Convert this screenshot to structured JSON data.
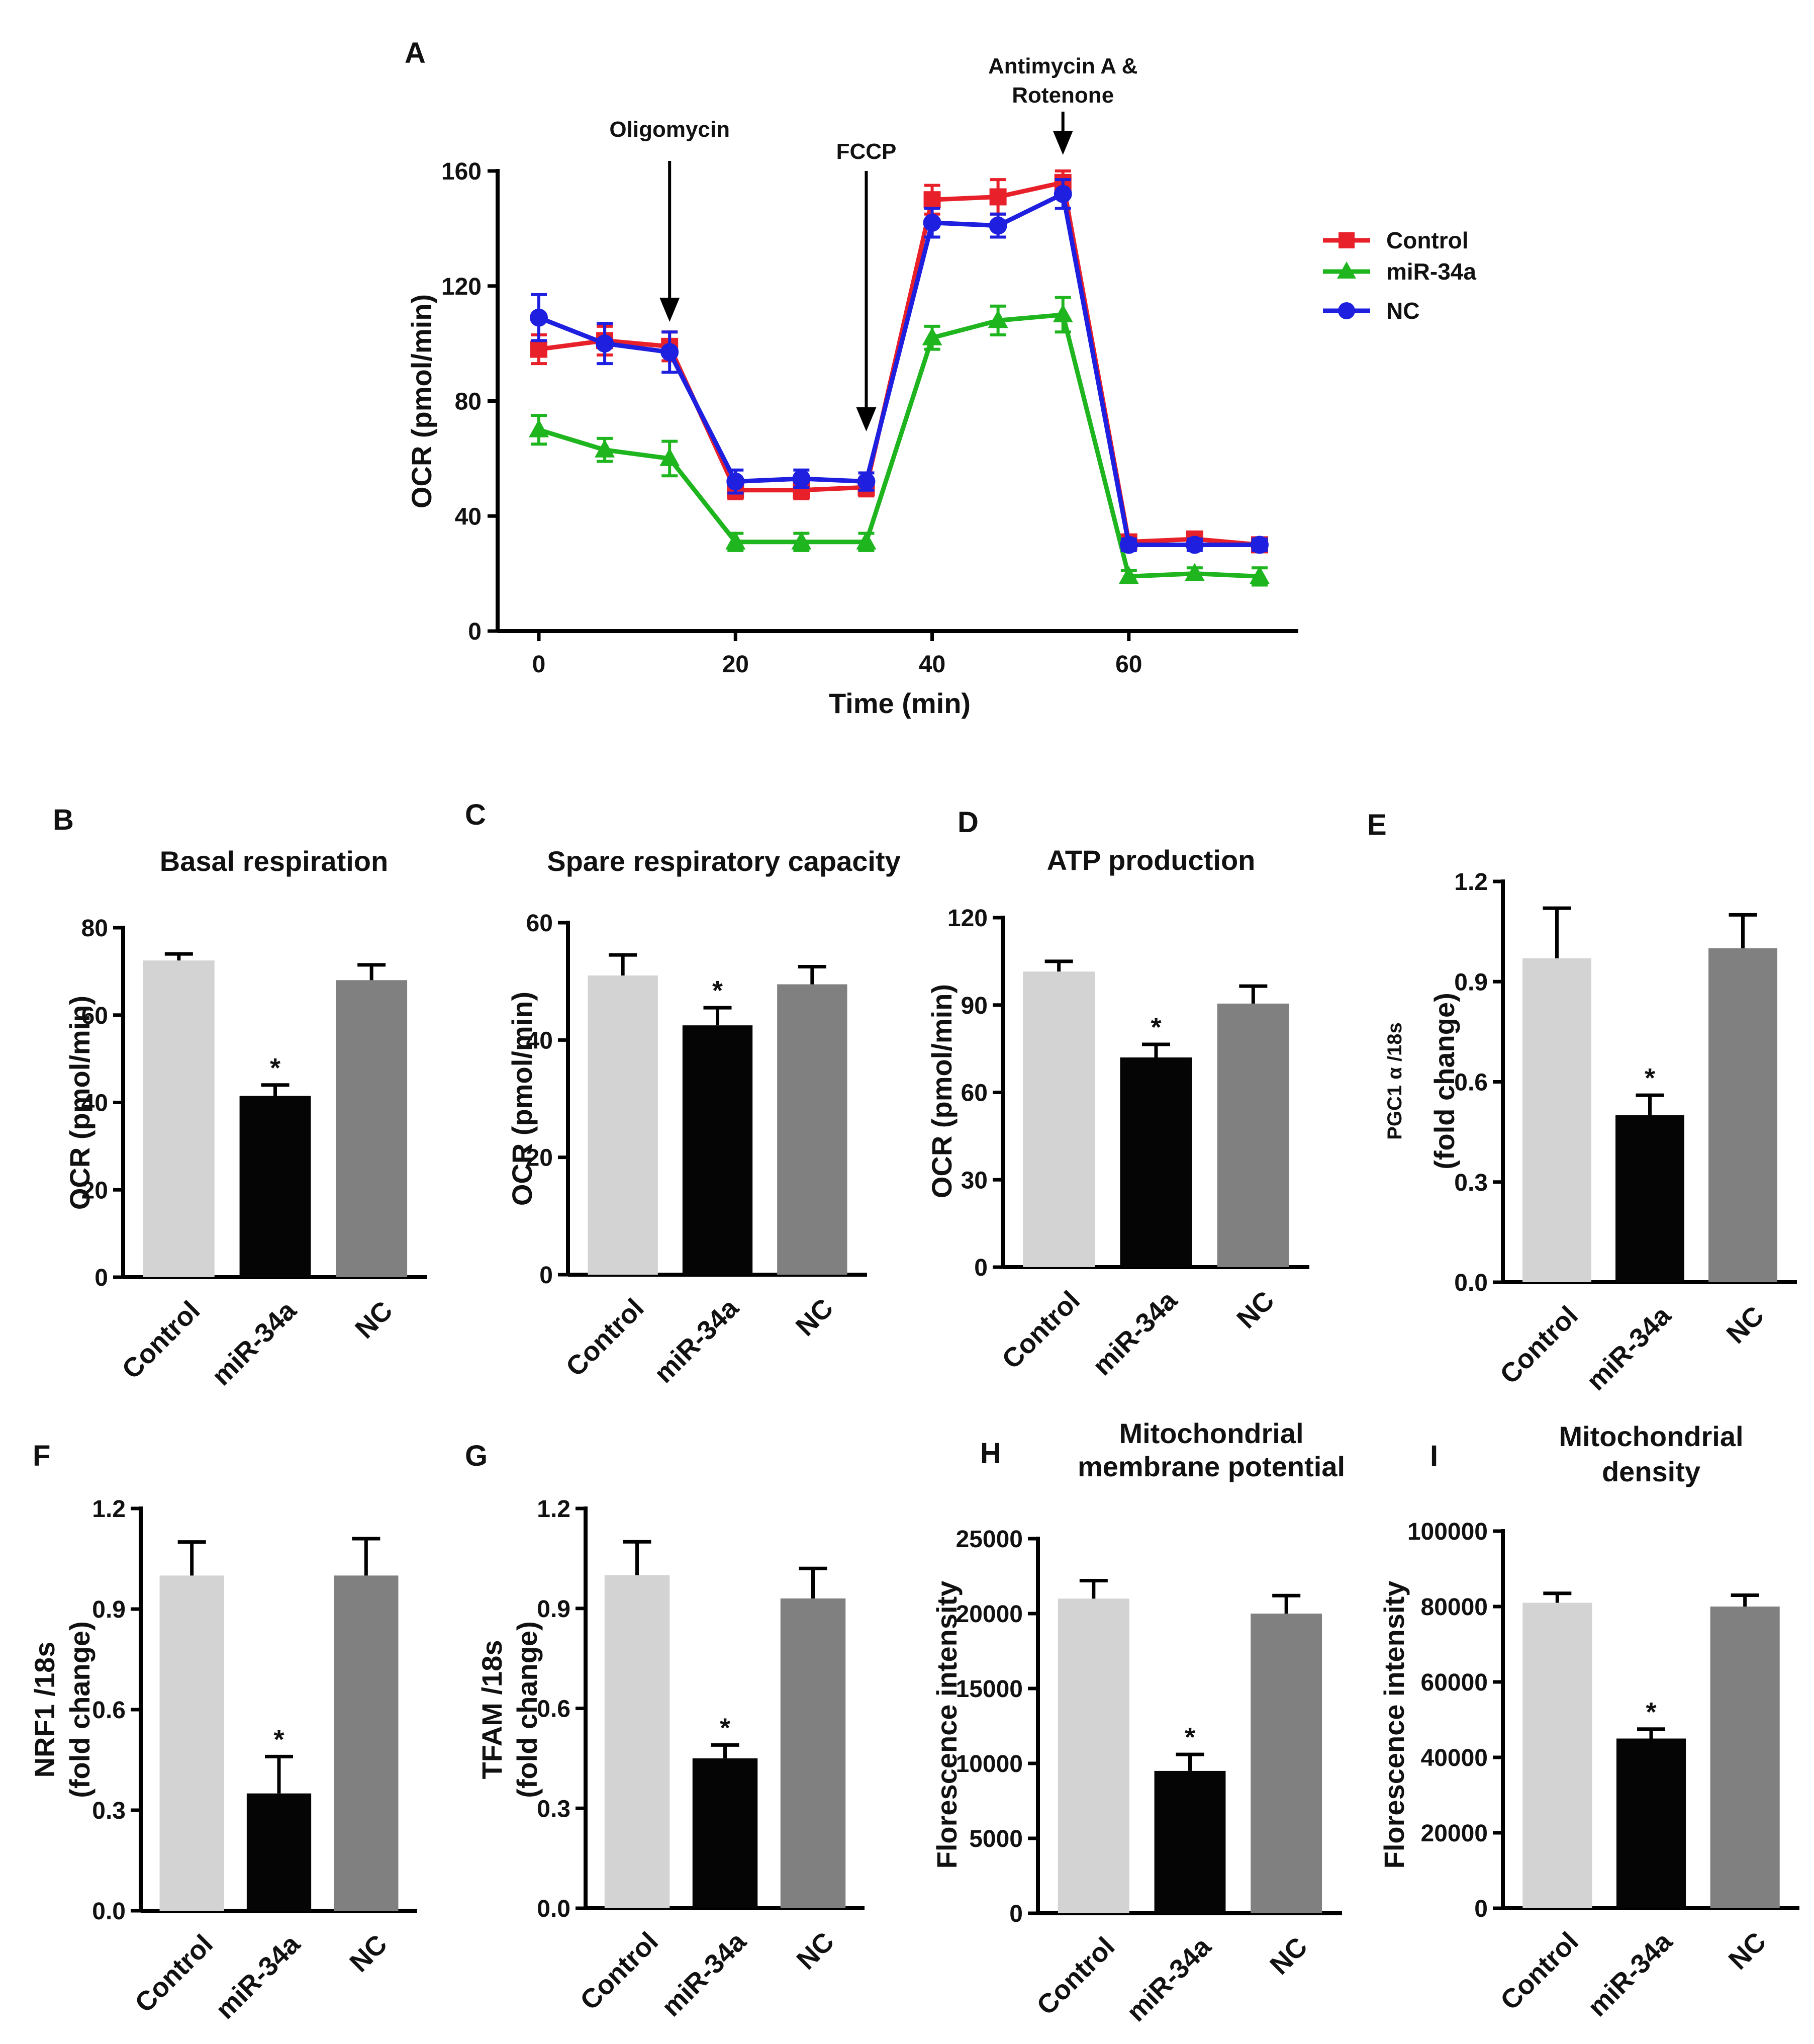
{
  "chart_data": [
    {
      "id": "A",
      "panel_label": "A",
      "type": "line",
      "title": "",
      "xlabel": "Time (min)",
      "ylabel": "OCR (pmol/min)",
      "xlim": [
        0,
        75
      ],
      "ylim": [
        0,
        160
      ],
      "xticks": [
        0,
        20,
        40,
        60
      ],
      "yticks": [
        0,
        40,
        80,
        120,
        160
      ],
      "x": [
        0,
        6.7,
        13.3,
        20,
        26.7,
        33.3,
        40,
        46.7,
        53.3,
        60,
        66.7,
        73.3
      ],
      "series": [
        {
          "name": "Control",
          "color": "#e8202a",
          "marker": "square",
          "values": [
            98,
            101,
            99,
            49,
            49,
            50,
            150,
            151,
            156,
            31,
            32,
            30
          ],
          "errors": [
            5,
            5,
            5,
            3,
            3,
            3,
            5,
            6,
            4,
            2,
            2,
            2
          ]
        },
        {
          "name": "miR-34a",
          "color": "#1fb51f",
          "marker": "triangle",
          "values": [
            70,
            63,
            60,
            31,
            31,
            31,
            102,
            108,
            110,
            19,
            20,
            19
          ],
          "errors": [
            5,
            4,
            6,
            3,
            3,
            3,
            4,
            5,
            6,
            2,
            2,
            3
          ]
        },
        {
          "name": "NC",
          "color": "#1f1fe0",
          "marker": "circle",
          "values": [
            109,
            100,
            97,
            52,
            53,
            52,
            142,
            141,
            152,
            30,
            30,
            30
          ],
          "errors": [
            8,
            7,
            7,
            4,
            3,
            3,
            5,
            4,
            5,
            2,
            2,
            2
          ]
        }
      ],
      "legend": [
        "Control",
        "miR-34a",
        "NC"
      ],
      "legend_position": "right",
      "annotations": [
        {
          "label": "Oligomycin",
          "x": 13.3
        },
        {
          "label": "FCCP",
          "x": 33.3
        },
        {
          "label": "Antimycin A &",
          "label2": "Rotenone",
          "x": 53.3
        }
      ]
    },
    {
      "id": "B",
      "panel_label": "B",
      "type": "bar",
      "title": "Basal respiration",
      "title2": "",
      "ylabel": "OCR (pmol/min)",
      "ylabel2": "",
      "categories": [
        "Control",
        "miR-34a",
        "NC"
      ],
      "values": [
        72.5,
        41.5,
        68
      ],
      "errors": [
        1.5,
        2.5,
        3.5
      ],
      "significance": [
        "",
        "*",
        ""
      ],
      "ylim": [
        0,
        80
      ],
      "yticks": [
        "0",
        "20",
        "40",
        "60",
        "80"
      ],
      "colors": [
        "#d3d3d3",
        "#050505",
        "#808080"
      ]
    },
    {
      "id": "C",
      "panel_label": "C",
      "type": "bar",
      "title": "Spare respiratory capacity",
      "title2": "",
      "ylabel": "OCR (pmol/min)",
      "ylabel2": "",
      "categories": [
        "Control",
        "miR-34a",
        "NC"
      ],
      "values": [
        51,
        42.5,
        49.5
      ],
      "errors": [
        3.5,
        3,
        3
      ],
      "significance": [
        "",
        "*",
        ""
      ],
      "ylim": [
        0,
        60
      ],
      "yticks": [
        "0",
        "20",
        "40",
        "60"
      ],
      "colors": [
        "#d3d3d3",
        "#050505",
        "#808080"
      ]
    },
    {
      "id": "D",
      "panel_label": "D",
      "type": "bar",
      "title": "ATP production",
      "title2": "",
      "ylabel": "OCR (pmol/min)",
      "ylabel2": "",
      "categories": [
        "Control",
        "miR-34a",
        "NC"
      ],
      "values": [
        101.5,
        72,
        90.5
      ],
      "errors": [
        3.5,
        4.5,
        6
      ],
      "significance": [
        "",
        "*",
        ""
      ],
      "ylim": [
        0,
        120
      ],
      "yticks": [
        "0",
        "30",
        "60",
        "90",
        "120"
      ],
      "colors": [
        "#d3d3d3",
        "#050505",
        "#808080"
      ]
    },
    {
      "id": "E",
      "panel_label": "E",
      "type": "bar",
      "title": "",
      "title2": "",
      "ylabel": "PGC1 α /18s",
      "ylabel2": "(fold change)",
      "categories": [
        "Control",
        "miR-34a",
        "NC"
      ],
      "values": [
        0.97,
        0.5,
        1.0
      ],
      "errors": [
        0.15,
        0.06,
        0.1
      ],
      "significance": [
        "",
        "*",
        ""
      ],
      "ylim": [
        0,
        1.2
      ],
      "yticks": [
        "0.0",
        "0.3",
        "0.6",
        "0.9",
        "1.2"
      ],
      "colors": [
        "#d3d3d3",
        "#050505",
        "#808080"
      ]
    },
    {
      "id": "F",
      "panel_label": "F",
      "type": "bar",
      "title": "",
      "title2": "",
      "ylabel": "NRF1 /18s",
      "ylabel2": "(fold change)",
      "categories": [
        "Control",
        "miR-34a",
        "NC"
      ],
      "values": [
        1.0,
        0.35,
        1.0
      ],
      "errors": [
        0.1,
        0.11,
        0.11
      ],
      "significance": [
        "",
        "*",
        ""
      ],
      "ylim": [
        0,
        1.2
      ],
      "yticks": [
        "0.0",
        "0.3",
        "0.6",
        "0.9",
        "1.2"
      ],
      "colors": [
        "#d3d3d3",
        "#050505",
        "#808080"
      ]
    },
    {
      "id": "G",
      "panel_label": "G",
      "type": "bar",
      "title": "",
      "title2": "",
      "ylabel": "TFAM /18s",
      "ylabel2": "(fold change)",
      "categories": [
        "Control",
        "miR-34a",
        "NC"
      ],
      "values": [
        1.0,
        0.45,
        0.93
      ],
      "errors": [
        0.1,
        0.04,
        0.09
      ],
      "significance": [
        "",
        "*",
        ""
      ],
      "ylim": [
        0,
        1.2
      ],
      "yticks": [
        "0.0",
        "0.3",
        "0.6",
        "0.9",
        "1.2"
      ],
      "colors": [
        "#d3d3d3",
        "#050505",
        "#808080"
      ]
    },
    {
      "id": "H",
      "panel_label": "H",
      "type": "bar",
      "title": "Mitochondrial",
      "title2": "membrane potential",
      "ylabel": "Florescence intensity",
      "ylabel2": "",
      "categories": [
        "Control",
        "miR-34a",
        "NC"
      ],
      "values": [
        21000,
        9500,
        20000
      ],
      "errors": [
        1200,
        1100,
        1200
      ],
      "significance": [
        "",
        "*",
        ""
      ],
      "ylim": [
        0,
        25000
      ],
      "yticks": [
        "0",
        "5000",
        "10000",
        "15000",
        "20000",
        "25000"
      ],
      "colors": [
        "#d3d3d3",
        "#050505",
        "#808080"
      ]
    },
    {
      "id": "I",
      "panel_label": "I",
      "type": "bar",
      "title": "Mitochondrial",
      "title2": "density",
      "ylabel": "Florescence intensity",
      "ylabel2": "",
      "categories": [
        "Control",
        "miR-34a",
        "NC"
      ],
      "values": [
        81000,
        45000,
        80000
      ],
      "errors": [
        2500,
        2500,
        3000
      ],
      "significance": [
        "",
        "*",
        ""
      ],
      "ylim": [
        0,
        100000
      ],
      "yticks": [
        "0",
        "20000",
        "40000",
        "60000",
        "80000",
        "100000"
      ],
      "colors": [
        "#d3d3d3",
        "#050505",
        "#808080"
      ]
    }
  ]
}
